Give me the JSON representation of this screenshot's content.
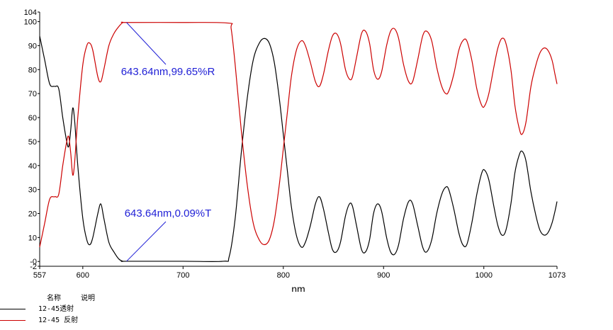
{
  "chart_data": {
    "type": "line",
    "title": "",
    "xlabel": "nm",
    "ylabel": "",
    "xlim": [
      557,
      1073
    ],
    "ylim": [
      -2,
      104
    ],
    "x_ticks": [
      557,
      600,
      700,
      800,
      900,
      1000,
      1073
    ],
    "y_ticks": [
      -2,
      0,
      10,
      20,
      30,
      40,
      50,
      60,
      70,
      80,
      90,
      100,
      104
    ],
    "y_tick_labels": [
      "-2",
      "-0",
      "10",
      "20",
      "30",
      "40",
      "50",
      "60",
      "70",
      "80",
      "90",
      "100",
      "104"
    ],
    "grid": false,
    "series": [
      {
        "name": "12-45透射",
        "color": "#000000",
        "points": [
          [
            557,
            94
          ],
          [
            562,
            84
          ],
          [
            567,
            74
          ],
          [
            572,
            73
          ],
          [
            576,
            72
          ],
          [
            580,
            60
          ],
          [
            584,
            50
          ],
          [
            586,
            48
          ],
          [
            588,
            55
          ],
          [
            590,
            64
          ],
          [
            592,
            58
          ],
          [
            595,
            40
          ],
          [
            600,
            18
          ],
          [
            604,
            9
          ],
          [
            607,
            7
          ],
          [
            610,
            10
          ],
          [
            615,
            20
          ],
          [
            618,
            24
          ],
          [
            621,
            18
          ],
          [
            626,
            8
          ],
          [
            631,
            4
          ],
          [
            636,
            1
          ],
          [
            640,
            0.09
          ],
          [
            643.64,
            0.09
          ],
          [
            700,
            0.09
          ],
          [
            740,
            0.09
          ],
          [
            746,
            2
          ],
          [
            752,
            18
          ],
          [
            758,
            45
          ],
          [
            764,
            68
          ],
          [
            770,
            84
          ],
          [
            776,
            91
          ],
          [
            781,
            93
          ],
          [
            786,
            91
          ],
          [
            791,
            83
          ],
          [
            796,
            68
          ],
          [
            800,
            53
          ],
          [
            804,
            38
          ],
          [
            808,
            23
          ],
          [
            813,
            11
          ],
          [
            818,
            6
          ],
          [
            822,
            8
          ],
          [
            827,
            15
          ],
          [
            832,
            24
          ],
          [
            836,
            27
          ],
          [
            840,
            22
          ],
          [
            845,
            12
          ],
          [
            849,
            5
          ],
          [
            853,
            4
          ],
          [
            857,
            8
          ],
          [
            862,
            19
          ],
          [
            866,
            24
          ],
          [
            869,
            23
          ],
          [
            873,
            15
          ],
          [
            878,
            5
          ],
          [
            882,
            4
          ],
          [
            886,
            9
          ],
          [
            890,
            20
          ],
          [
            894,
            24
          ],
          [
            898,
            21
          ],
          [
            903,
            10
          ],
          [
            907,
            4
          ],
          [
            911,
            3
          ],
          [
            915,
            7
          ],
          [
            920,
            18
          ],
          [
            925,
            25
          ],
          [
            929,
            24
          ],
          [
            934,
            15
          ],
          [
            939,
            6
          ],
          [
            943,
            4
          ],
          [
            948,
            9
          ],
          [
            953,
            20
          ],
          [
            958,
            28
          ],
          [
            962,
            31
          ],
          [
            965,
            30
          ],
          [
            970,
            22
          ],
          [
            975,
            12
          ],
          [
            979,
            7
          ],
          [
            983,
            7
          ],
          [
            988,
            16
          ],
          [
            993,
            28
          ],
          [
            998,
            37
          ],
          [
            1001,
            38
          ],
          [
            1005,
            34
          ],
          [
            1010,
            23
          ],
          [
            1014,
            15
          ],
          [
            1018,
            11
          ],
          [
            1022,
            13
          ],
          [
            1027,
            24
          ],
          [
            1031,
            37
          ],
          [
            1035,
            44
          ],
          [
            1038,
            46
          ],
          [
            1042,
            42
          ],
          [
            1047,
            29
          ],
          [
            1052,
            19
          ],
          [
            1056,
            13
          ],
          [
            1060,
            11
          ],
          [
            1064,
            12
          ],
          [
            1068,
            16
          ],
          [
            1071,
            21
          ],
          [
            1073,
            25
          ]
        ]
      },
      {
        "name": "12-45 反射",
        "color": "#cc0000",
        "points": [
          [
            557,
            6
          ],
          [
            562,
            16
          ],
          [
            567,
            26
          ],
          [
            572,
            27
          ],
          [
            576,
            28
          ],
          [
            580,
            40
          ],
          [
            584,
            50
          ],
          [
            586,
            52
          ],
          [
            588,
            45
          ],
          [
            590,
            36
          ],
          [
            592,
            42
          ],
          [
            595,
            60
          ],
          [
            600,
            82
          ],
          [
            604,
            90
          ],
          [
            607,
            91
          ],
          [
            610,
            88
          ],
          [
            615,
            77
          ],
          [
            618,
            75
          ],
          [
            621,
            80
          ],
          [
            626,
            90
          ],
          [
            631,
            95
          ],
          [
            636,
            98
          ],
          [
            640,
            99.65
          ],
          [
            643.64,
            99.65
          ],
          [
            700,
            99.65
          ],
          [
            745,
            99.4
          ],
          [
            748,
            97
          ],
          [
            752,
            82
          ],
          [
            758,
            55
          ],
          [
            764,
            32
          ],
          [
            770,
            16
          ],
          [
            776,
            9
          ],
          [
            781,
            7
          ],
          [
            786,
            9
          ],
          [
            791,
            17
          ],
          [
            796,
            32
          ],
          [
            800,
            47
          ],
          [
            804,
            62
          ],
          [
            808,
            77
          ],
          [
            813,
            88
          ],
          [
            818,
            92
          ],
          [
            822,
            90
          ],
          [
            827,
            83
          ],
          [
            832,
            75
          ],
          [
            836,
            73
          ],
          [
            840,
            78
          ],
          [
            845,
            88
          ],
          [
            849,
            94
          ],
          [
            853,
            95
          ],
          [
            857,
            91
          ],
          [
            862,
            80
          ],
          [
            866,
            76
          ],
          [
            869,
            77
          ],
          [
            873,
            85
          ],
          [
            878,
            95
          ],
          [
            882,
            96
          ],
          [
            886,
            91
          ],
          [
            890,
            80
          ],
          [
            894,
            76
          ],
          [
            898,
            79
          ],
          [
            903,
            90
          ],
          [
            907,
            96
          ],
          [
            911,
            97
          ],
          [
            915,
            93
          ],
          [
            920,
            82
          ],
          [
            925,
            75
          ],
          [
            929,
            75
          ],
          [
            934,
            84
          ],
          [
            939,
            94
          ],
          [
            943,
            96
          ],
          [
            948,
            92
          ],
          [
            953,
            81
          ],
          [
            958,
            73
          ],
          [
            962,
            70
          ],
          [
            965,
            71
          ],
          [
            970,
            78
          ],
          [
            975,
            88
          ],
          [
            979,
            92
          ],
          [
            983,
            92
          ],
          [
            988,
            84
          ],
          [
            993,
            72
          ],
          [
            998,
            65
          ],
          [
            1001,
            65
          ],
          [
            1005,
            70
          ],
          [
            1010,
            81
          ],
          [
            1014,
            89
          ],
          [
            1018,
            93
          ],
          [
            1022,
            91
          ],
          [
            1027,
            80
          ],
          [
            1031,
            65
          ],
          [
            1035,
            56
          ],
          [
            1038,
            53
          ],
          [
            1042,
            58
          ],
          [
            1047,
            73
          ],
          [
            1052,
            82
          ],
          [
            1056,
            87
          ],
          [
            1060,
            89
          ],
          [
            1064,
            88
          ],
          [
            1068,
            84
          ],
          [
            1071,
            78
          ],
          [
            1073,
            74
          ]
        ]
      }
    ],
    "annotations": [
      {
        "text": "643.64nm,99.65%R",
        "x": 643.64,
        "y": 99.65
      },
      {
        "text": "643.64nm,0.09%T",
        "x": 643.64,
        "y": 0.09
      }
    ],
    "annotation_color": "#1f1fd6"
  },
  "legend": {
    "header_name": "名称",
    "header_desc": "说明",
    "items": [
      {
        "label": "12-45透射",
        "color": "#000000"
      },
      {
        "label": "12-45 反射",
        "color": "#cc0000"
      }
    ]
  }
}
